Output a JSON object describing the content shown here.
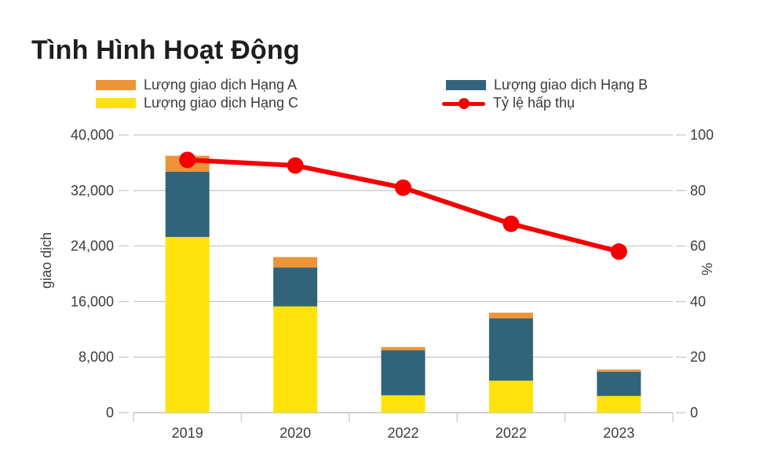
{
  "title": "Tình Hình Hoạt Động",
  "colors": {
    "hang_a": "#ED9438",
    "hang_b": "#31647A",
    "hang_c": "#FFE20C",
    "absorption_line": "#F40000",
    "grid": "#C9C9C9",
    "axis_line": "#BDBDBD",
    "axis_text": "#3C3C3C",
    "title_text": "#1E1E1E"
  },
  "legend": [
    {
      "label": "Lượng giao dịch Hạng A",
      "marker": "swatch",
      "color_key": "hang_a"
    },
    {
      "label": "Lượng giao dịch Hạng B",
      "marker": "swatch",
      "color_key": "hang_b"
    },
    {
      "label": "Lượng giao dịch Hạng C",
      "marker": "swatch",
      "color_key": "hang_c"
    },
    {
      "label": "Tỷ lệ hấp thụ",
      "marker": "line-dot",
      "color_key": "absorption_line"
    }
  ],
  "chart_data": {
    "type": "bar",
    "subtype": "stacked-bars-with-line-overlay",
    "title": "Tình Hình Hoạt Động",
    "categories": [
      "2019",
      "2020",
      "2022",
      "2022",
      "2023"
    ],
    "series": [
      {
        "name": "Lượng giao dịch Hạng C",
        "type": "bar",
        "axis": "left",
        "color_key": "hang_c",
        "values": [
          25300,
          15300,
          2500,
          4600,
          2400
        ]
      },
      {
        "name": "Lượng giao dịch Hạng B",
        "type": "bar",
        "axis": "left",
        "color_key": "hang_b",
        "values": [
          9400,
          5600,
          6500,
          9000,
          3500
        ]
      },
      {
        "name": "Lượng giao dịch Hạng A",
        "type": "bar",
        "axis": "left",
        "color_key": "hang_a",
        "values": [
          2300,
          1500,
          450,
          800,
          300
        ]
      },
      {
        "name": "Tỷ lệ hấp thụ",
        "type": "line",
        "axis": "right",
        "color_key": "absorption_line",
        "values": [
          91,
          89,
          81,
          68,
          58
        ]
      }
    ],
    "left_axis": {
      "label": "giao dịch",
      "min": 0,
      "max": 40000,
      "tick_values": [
        0,
        8000,
        16000,
        24000,
        32000,
        40000
      ],
      "tick_labels": [
        "0",
        "8,000",
        "16,000",
        "24,000",
        "32,000",
        "40,000"
      ]
    },
    "right_axis": {
      "label": "%",
      "min": 0,
      "max": 100,
      "tick_values": [
        0,
        20,
        40,
        60,
        80,
        100
      ],
      "tick_labels": [
        "0",
        "20",
        "40",
        "60",
        "80",
        "100"
      ]
    },
    "grid": true,
    "legend_position": "top"
  }
}
